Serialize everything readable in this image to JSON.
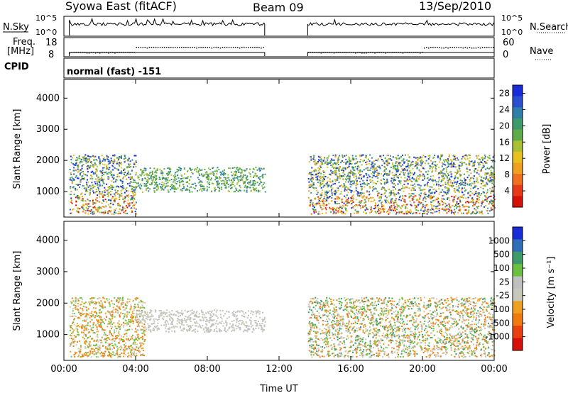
{
  "header": {
    "station": "Syowa East (fitACF)",
    "beam": "Beam 09",
    "date": "13/Sep/2010"
  },
  "top_panels": {
    "nsky_label": "N.Sky",
    "nsearch_label": "N.Search",
    "nsky_ticks": [
      "10^5",
      "10^0"
    ],
    "nsearch_ticks": [
      "10^5",
      "10^0"
    ],
    "freq_label_1": "Freq.",
    "freq_label_2": "[MHz]",
    "freq_ticks": [
      "18",
      "8"
    ],
    "nave_label": "Nave",
    "nave_ticks": [
      "60",
      "0"
    ],
    "cpid_label": "CPID",
    "cpid_value": "normal (fast) -151"
  },
  "colors": {
    "power": [
      "#1a2bd8",
      "#2a4fd0",
      "#2f7fa8",
      "#3f9a6a",
      "#5dab4a",
      "#a8c032",
      "#e8c020",
      "#f0a020",
      "#f07020",
      "#e83a1a",
      "#d8100a"
    ],
    "velocity": [
      "#1a2bd8",
      "#2f6fb8",
      "#3f9a6a",
      "#6cc040",
      "#c0c0c0",
      "#c8c8b8",
      "#f0a020",
      "#f07a10",
      "#e84010",
      "#d8100a"
    ]
  },
  "chart_data": [
    {
      "type": "heatmap",
      "ylabel": "Slant Range [km]",
      "xlabel": "",
      "x_ticks": [
        "00:00",
        "04:00",
        "08:00",
        "12:00",
        "16:00",
        "20:00",
        "00:00"
      ],
      "xlim_hours": [
        0,
        24
      ],
      "ylim": [
        180,
        4600
      ],
      "y_ticks": [
        1000,
        2000,
        3000,
        4000
      ],
      "colorbar_label": "Power [dB]",
      "colorbar_ticks": [
        4,
        8,
        12,
        16,
        20,
        24,
        28
      ],
      "data_gap_hours": [
        11.2,
        13.6
      ],
      "backscatter_regions": [
        {
          "hours": [
            0.3,
            4.0
          ],
          "range_km": [
            300,
            2200
          ],
          "level": "mixed"
        },
        {
          "hours": [
            4.0,
            11.2
          ],
          "range_km": [
            1000,
            1800
          ],
          "level": "medium"
        },
        {
          "hours": [
            13.6,
            24.0
          ],
          "range_km": [
            300,
            2200
          ],
          "level": "mixed"
        }
      ]
    },
    {
      "type": "heatmap",
      "ylabel": "Slant Range [km]",
      "xlabel": "Time UT",
      "x_ticks": [
        "00:00",
        "04:00",
        "08:00",
        "12:00",
        "16:00",
        "20:00",
        "00:00"
      ],
      "xlim_hours": [
        0,
        24
      ],
      "ylim": [
        180,
        4600
      ],
      "y_ticks": [
        1000,
        2000,
        3000,
        4000
      ],
      "colorbar_label": "Velocity [m s⁻¹]",
      "colorbar_ticks": [
        1000,
        500,
        100,
        25,
        -25,
        -100,
        -500,
        -1000
      ],
      "data_gap_hours": [
        11.2,
        13.6
      ],
      "backscatter_regions": [
        {
          "hours": [
            0.3,
            4.5
          ],
          "range_km": [
            300,
            2200
          ],
          "level": "negative"
        },
        {
          "hours": [
            4.0,
            11.2
          ],
          "range_km": [
            1100,
            1800
          ],
          "level": "ground"
        },
        {
          "hours": [
            13.6,
            24.0
          ],
          "range_km": [
            300,
            2200
          ],
          "level": "mixed"
        }
      ]
    }
  ]
}
